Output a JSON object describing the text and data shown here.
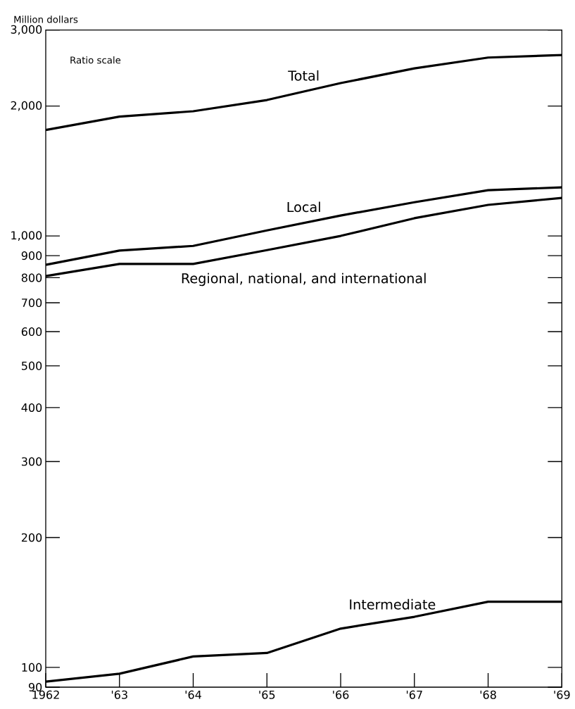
{
  "chart_data": {
    "type": "line",
    "ylabel": "Million dollars",
    "log": "y",
    "grid": false,
    "legend": false,
    "marker": "none",
    "line_style": "solid",
    "annotations": [
      "Ratio scale"
    ],
    "x": [
      1962,
      1963,
      1964,
      1965,
      1966,
      1967,
      1968,
      1969
    ],
    "xlim": [
      1962,
      1969
    ],
    "xticks": [
      1962,
      {
        "value": 1963,
        "label": "'63"
      },
      {
        "value": 1964,
        "label": "'64"
      },
      {
        "value": 1965,
        "label": "'65"
      },
      {
        "value": 1966,
        "label": "'66"
      },
      {
        "value": 1967,
        "label": "'67"
      },
      {
        "value": 1968,
        "label": "'68"
      },
      {
        "value": 1969,
        "label": "'69"
      }
    ],
    "ylim": [
      90,
      3000
    ],
    "yticks": [
      90,
      100,
      200,
      300,
      400,
      500,
      600,
      700,
      800,
      900,
      {
        "value": 1000,
        "label": "1,000"
      },
      {
        "value": 2000,
        "label": "2,000"
      },
      {
        "value": 3000,
        "label": "3,000"
      }
    ],
    "series": [
      {
        "name": "Total",
        "color": "#000000",
        "values": [
          1760,
          1890,
          1945,
          2065,
          2260,
          2445,
          2590,
          2625
        ]
      },
      {
        "name": "Local",
        "color": "#000000",
        "values": [
          857,
          925,
          948,
          1030,
          1115,
          1197,
          1276,
          1296
        ]
      },
      {
        "name": "Regional, national, and international",
        "color": "#000000",
        "values": [
          807,
          861,
          861,
          927,
          1000,
          1099,
          1180,
          1225
        ]
      },
      {
        "name": "Intermediate",
        "color": "#000000",
        "values": [
          92.7,
          96.7,
          106,
          108,
          123,
          131,
          142,
          142
        ]
      }
    ]
  }
}
